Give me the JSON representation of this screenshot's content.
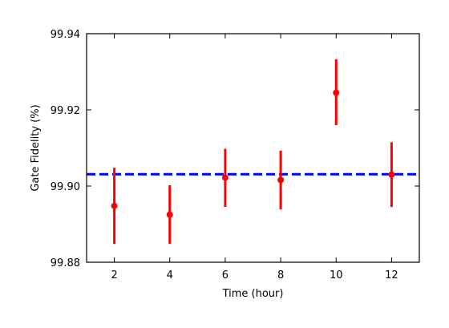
{
  "chart_data": {
    "type": "scatter",
    "xlabel": "Time (hour)",
    "ylabel": "Gate Fidelity (%)",
    "xlim": [
      1,
      13
    ],
    "ylim": [
      99.88,
      99.94
    ],
    "xticks": [
      2,
      4,
      6,
      8,
      10,
      12
    ],
    "yticks": [
      99.88,
      99.9,
      99.92,
      99.94
    ],
    "xtick_labels": [
      "2",
      "4",
      "6",
      "8",
      "10",
      "12"
    ],
    "ytick_labels": [
      "99.88",
      "99.90",
      "99.92",
      "99.94"
    ],
    "grid": false,
    "tick_direction": "in",
    "series": [
      {
        "color": "#ff0000",
        "marker": "circle",
        "points": [
          {
            "x": 2,
            "y": 99.8948,
            "err_low": 99.8848,
            "err_high": 99.9048
          },
          {
            "x": 4,
            "y": 99.8925,
            "err_low": 99.8848,
            "err_high": 99.9002
          },
          {
            "x": 6,
            "y": 99.9022,
            "err_low": 99.8945,
            "err_high": 99.9098
          },
          {
            "x": 8,
            "y": 99.9016,
            "err_low": 99.8939,
            "err_high": 99.9093
          },
          {
            "x": 10,
            "y": 99.9245,
            "err_low": 99.916,
            "err_high": 99.9333
          },
          {
            "x": 12,
            "y": 99.903,
            "err_low": 99.8945,
            "err_high": 99.9115
          }
        ]
      }
    ],
    "reference_line": {
      "y": 99.9031,
      "color": "#0000ff",
      "style": "dashed"
    }
  }
}
